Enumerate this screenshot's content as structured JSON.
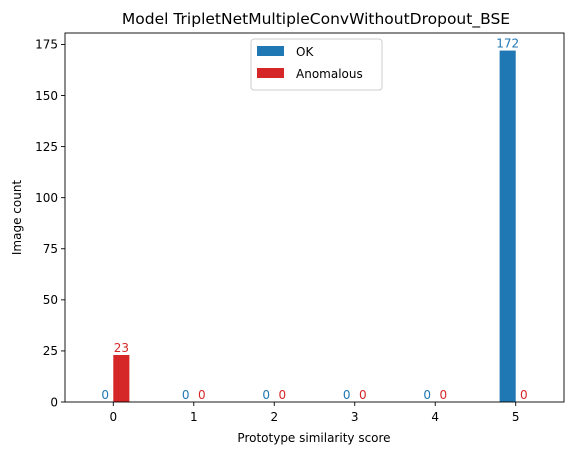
{
  "chart_data": {
    "type": "bar",
    "title": "Model TripletNetMultipleConvWithoutDropout_BSE",
    "xlabel": "Prototype similarity score",
    "ylabel": "Image count",
    "categories": [
      "0",
      "1",
      "2",
      "3",
      "4",
      "5"
    ],
    "series": [
      {
        "name": "OK",
        "color": "#1f77b4",
        "values": [
          0,
          0,
          0,
          0,
          0,
          172
        ]
      },
      {
        "name": "Anomalous",
        "color": "#d62728",
        "values": [
          23,
          0,
          0,
          0,
          0,
          0
        ]
      }
    ],
    "xlim": [
      -0.6,
      5.6
    ],
    "ylim": [
      0,
      180.6
    ],
    "yticks": [
      0,
      25,
      50,
      75,
      100,
      125,
      150,
      175
    ],
    "xticks": [
      0,
      1,
      2,
      3,
      4,
      5
    ],
    "grid": false,
    "legend_position": "upper center",
    "bar_labels": true
  }
}
